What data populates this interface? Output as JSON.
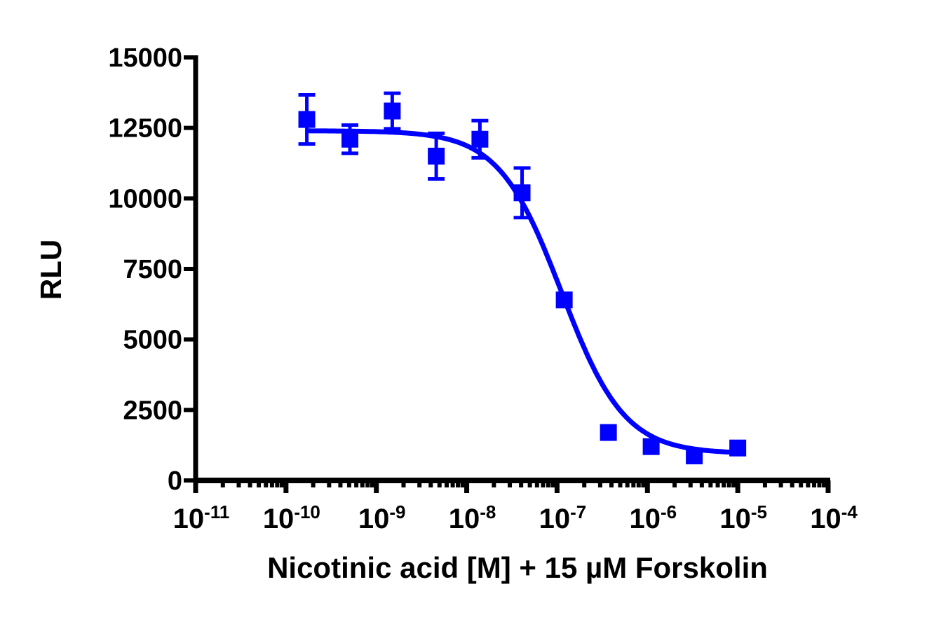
{
  "chart_data": {
    "type": "scatter",
    "subtype": "dose-response with sigmoidal fit and SEM error bars",
    "title": "",
    "xlabel": "Nicotinic acid [M] + 15 µM Forskolin",
    "ylabel": "RLU",
    "xscale": "log",
    "xlim": [
      1e-11,
      0.0001
    ],
    "ylim": [
      0,
      15000
    ],
    "x_ticks": [
      {
        "base": "10",
        "exp": "-11",
        "value": 1e-11
      },
      {
        "base": "10",
        "exp": "-10",
        "value": 1e-10
      },
      {
        "base": "10",
        "exp": "-9",
        "value": 1e-09
      },
      {
        "base": "10",
        "exp": "-8",
        "value": 1e-08
      },
      {
        "base": "10",
        "exp": "-7",
        "value": 1e-07
      },
      {
        "base": "10",
        "exp": "-6",
        "value": 1e-06
      },
      {
        "base": "10",
        "exp": "-5",
        "value": 1e-05
      },
      {
        "base": "10",
        "exp": "-4",
        "value": 0.0001
      }
    ],
    "y_ticks": [
      "0",
      "2500",
      "5000",
      "7500",
      "10000",
      "12500",
      "15000"
    ],
    "y_tick_values": [
      0,
      2500,
      5000,
      7500,
      10000,
      12500,
      15000
    ],
    "grid": false,
    "legend": null,
    "series": [
      {
        "name": "Nicotinic acid",
        "color": "#0000FF",
        "marker": "square",
        "x": [
          1.7e-10,
          5.1e-10,
          1.5e-09,
          4.6e-09,
          1.4e-08,
          4.1e-08,
          1.2e-07,
          3.7e-07,
          1.1e-06,
          3.3e-06,
          1e-05
        ],
        "y": [
          12800,
          12100,
          13100,
          11500,
          12100,
          10200,
          6400,
          1700,
          1200,
          870,
          1150
        ],
        "error": [
          870,
          500,
          630,
          810,
          660,
          880,
          0,
          0,
          0,
          0,
          0
        ]
      }
    ],
    "fit": {
      "model": "four-parameter logistic",
      "top": 12400,
      "bottom": 950,
      "logIC50": -6.95,
      "hill_slope": -1.25,
      "x_range": [
        1.7e-10,
        1e-05
      ],
      "color": "#0000FF"
    }
  },
  "colors": {
    "series": "#0000FF",
    "axis": "#000000",
    "background": "#FFFFFF"
  }
}
